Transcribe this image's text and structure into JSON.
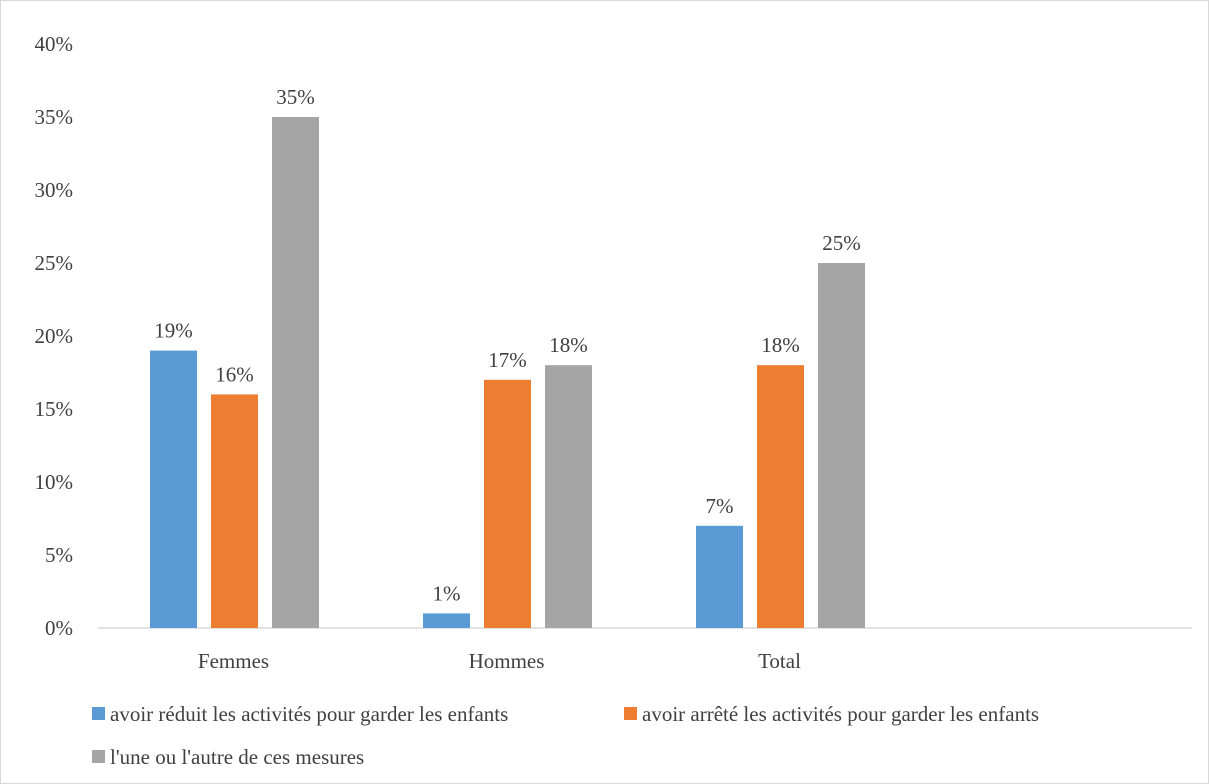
{
  "chart_data": {
    "type": "bar",
    "title": "",
    "xlabel": "",
    "ylabel": "",
    "categories": [
      "Femmes",
      "Hommes",
      "Total"
    ],
    "series": [
      {
        "name": "avoir réduit les activités pour garder les enfants",
        "color": "#5b9bd5",
        "values": [
          19,
          1,
          7
        ]
      },
      {
        "name": "avoir arrêté les activités pour garder les enfants",
        "color": "#ed7d31",
        "values": [
          16,
          17,
          18
        ]
      },
      {
        "name": "l'une ou l'autre de ces mesures",
        "color": "#a5a5a5",
        "values": [
          35,
          18,
          25
        ]
      }
    ],
    "ylim": [
      0,
      40
    ],
    "yticks": [
      0,
      5,
      10,
      15,
      20,
      25,
      30,
      35,
      40
    ],
    "ytick_labels": [
      "0%",
      "5%",
      "10%",
      "15%",
      "20%",
      "25%",
      "30%",
      "35%",
      "40%"
    ],
    "data_labels": [
      [
        "19%",
        "1%",
        "7%"
      ],
      [
        "16%",
        "17%",
        "18%"
      ],
      [
        "35%",
        "18%",
        "25%"
      ]
    ],
    "grid": false,
    "legend_position": "bottom"
  }
}
